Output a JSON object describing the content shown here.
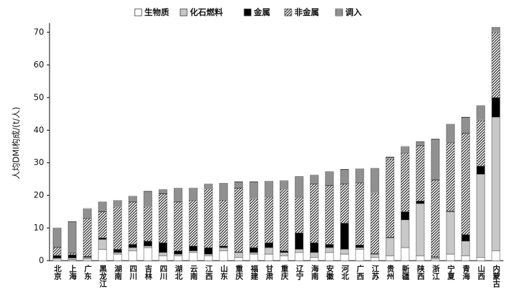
{
  "chart_data": {
    "type": "stacked_bar",
    "y_label": "人均DMI构成/(t/人)",
    "categories": [
      "北京",
      "上海",
      "广东",
      "黑龙江",
      "湖南",
      "四川",
      "吉林",
      "四川",
      "湖北",
      "云南",
      "江西",
      "山东",
      "重庆",
      "福建",
      "甘肃",
      "重庆",
      "辽宁",
      "海南",
      "安徽",
      "河北",
      "广西",
      "江苏",
      "贵州",
      "新疆",
      "陕西",
      "浙江",
      "宁夏",
      "青海",
      "山西",
      "内蒙古"
    ],
    "series": [
      {
        "name": "生物质",
        "color": "#ffffff",
        "values": [
          0.5,
          0.3,
          0.5,
          3.5,
          2,
          3,
          4,
          1.5,
          1.5,
          2.5,
          1.5,
          3,
          1,
          2,
          2,
          1.5,
          2.5,
          1,
          2.5,
          2,
          3.5,
          1,
          1.5,
          4,
          1.5,
          0.5,
          2,
          1.5,
          1,
          3
        ]
      },
      {
        "name": "化石燃料",
        "color": "#c8c8c8",
        "values": [
          0.3,
          0.5,
          0.5,
          3,
          0.5,
          1,
          0.5,
          1,
          0.5,
          0.5,
          0.5,
          1,
          1.5,
          0.5,
          2,
          1,
          1,
          1.5,
          1.5,
          1.5,
          0.5,
          1,
          5.5,
          8.5,
          16,
          0.5,
          13,
          4.5,
          25.5,
          41
        ]
      },
      {
        "name": "金属",
        "color": "#000000",
        "values": [
          0.8,
          1.0,
          0.3,
          0.5,
          1,
          1,
          1.5,
          3,
          1,
          1.5,
          2,
          0.5,
          0.2,
          1.5,
          1.5,
          0.5,
          5,
          3,
          1,
          8,
          0.8,
          0.2,
          0.2,
          2.5,
          0.8,
          0.2,
          0.2,
          2,
          2.5,
          6
        ]
      },
      {
        "name": "非金属",
        "color": "#222222",
        "pattern": "diagonal",
        "values": [
          2.5,
          0.5,
          11.7,
          8,
          13,
          13,
          10.5,
          15,
          15,
          14,
          18,
          14,
          19.5,
          15,
          14,
          19,
          11,
          18,
          18,
          12,
          19,
          18.5,
          24,
          18,
          17,
          23.5,
          21,
          31,
          14,
          20
        ]
      },
      {
        "name": "调入",
        "color": "#222222",
        "pattern": "horizontal",
        "values": [
          5.9,
          9.7,
          3,
          3,
          2,
          1.8,
          4.8,
          1.3,
          4.2,
          3.8,
          1.5,
          5.2,
          2,
          5.2,
          4.9,
          2.5,
          6.3,
          2.7,
          4.3,
          4.5,
          4.4,
          7.6,
          0.6,
          2,
          1.2,
          12.6,
          5.6,
          5,
          4.5,
          1.5
        ]
      }
    ],
    "ylim": [
      0,
      72
    ],
    "yticks": [
      0,
      10,
      20,
      30,
      40,
      50,
      60,
      70
    ]
  }
}
